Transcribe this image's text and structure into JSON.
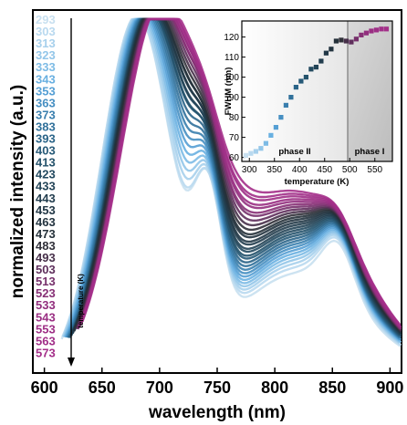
{
  "chart_data": [
    {
      "type": "line",
      "xlabel": "wavelength (nm)",
      "ylabel": "normalized intensity (a.u.)",
      "xlim": [
        590,
        910
      ],
      "x_ticks": [
        "600",
        "650",
        "700",
        "750",
        "800",
        "850",
        "900"
      ],
      "y_ticks_shown": false,
      "legend_title": "temperature (K)",
      "legend_placement": "left",
      "legend_entries": [
        "293",
        "303",
        "313",
        "323",
        "333",
        "343",
        "353",
        "363",
        "373",
        "383",
        "393",
        "403",
        "413",
        "423",
        "433",
        "443",
        "453",
        "463",
        "473",
        "483",
        "493",
        "503",
        "513",
        "523",
        "533",
        "543",
        "553",
        "563",
        "573"
      ],
      "series_colors": [
        "#c8e0f0",
        "#b9d9ef",
        "#a7d0ec",
        "#93c6e9",
        "#7dbbe5",
        "#69b0e1",
        "#559fd4",
        "#468fc2",
        "#3a7fae",
        "#31719b",
        "#2a6488",
        "#275a78",
        "#24526b",
        "#234a60",
        "#234457",
        "#223d4e",
        "#213746",
        "#22333f",
        "#25313a",
        "#303039",
        "#47304a",
        "#5f2f5c",
        "#76306b",
        "#873076",
        "#922f7e",
        "#9a2f83",
        "#9e2f86",
        "#a12f88",
        "#a42f89"
      ],
      "peak_wavelength_nm": [
        680,
        680,
        681,
        682,
        683,
        684,
        685,
        686,
        687,
        688,
        689,
        690,
        690,
        691,
        691,
        692,
        692,
        693,
        693,
        694,
        695,
        696,
        697,
        697,
        698,
        698,
        699,
        699,
        700
      ],
      "series_profile_note": ""
    },
    {
      "type": "scatter",
      "xlabel": "temperature (K)",
      "ylabel": "FWHM (nm)",
      "xlim": [
        285,
        585
      ],
      "ylim": [
        58,
        128
      ],
      "x_ticks": [
        "300",
        "350",
        "400",
        "450",
        "500",
        "550"
      ],
      "y_ticks": [
        "60",
        "70",
        "80",
        "90",
        "100",
        "110",
        "120"
      ],
      "phase_boundary_K": 490,
      "regions": [
        "phase II",
        "phase I"
      ],
      "x": [
        293,
        303,
        313,
        323,
        333,
        343,
        353,
        363,
        373,
        383,
        393,
        403,
        413,
        423,
        433,
        443,
        453,
        463,
        473,
        483,
        493,
        503,
        513,
        523,
        533,
        543,
        553,
        563,
        573
      ],
      "y": [
        61,
        62,
        63,
        64.5,
        67,
        71,
        75,
        80,
        86,
        90,
        95,
        98,
        100,
        104,
        105,
        108,
        112,
        114,
        118,
        118.5,
        118,
        117.5,
        119,
        121,
        122,
        123,
        123.5,
        124,
        124
      ],
      "point_colors": [
        "#c8e0f0",
        "#b9d9ef",
        "#a7d0ec",
        "#93c6e9",
        "#7dbbe5",
        "#69b0e1",
        "#559fd4",
        "#468fc2",
        "#3a7fae",
        "#31719b",
        "#2a6488",
        "#275a78",
        "#24526b",
        "#234a60",
        "#234457",
        "#223d4e",
        "#213746",
        "#22333f",
        "#25313a",
        "#303039",
        "#47304a",
        "#5f2f5c",
        "#76306b",
        "#873076",
        "#922f7e",
        "#9a2f83",
        "#9e2f86",
        "#a12f88",
        "#a42f89"
      ]
    }
  ]
}
